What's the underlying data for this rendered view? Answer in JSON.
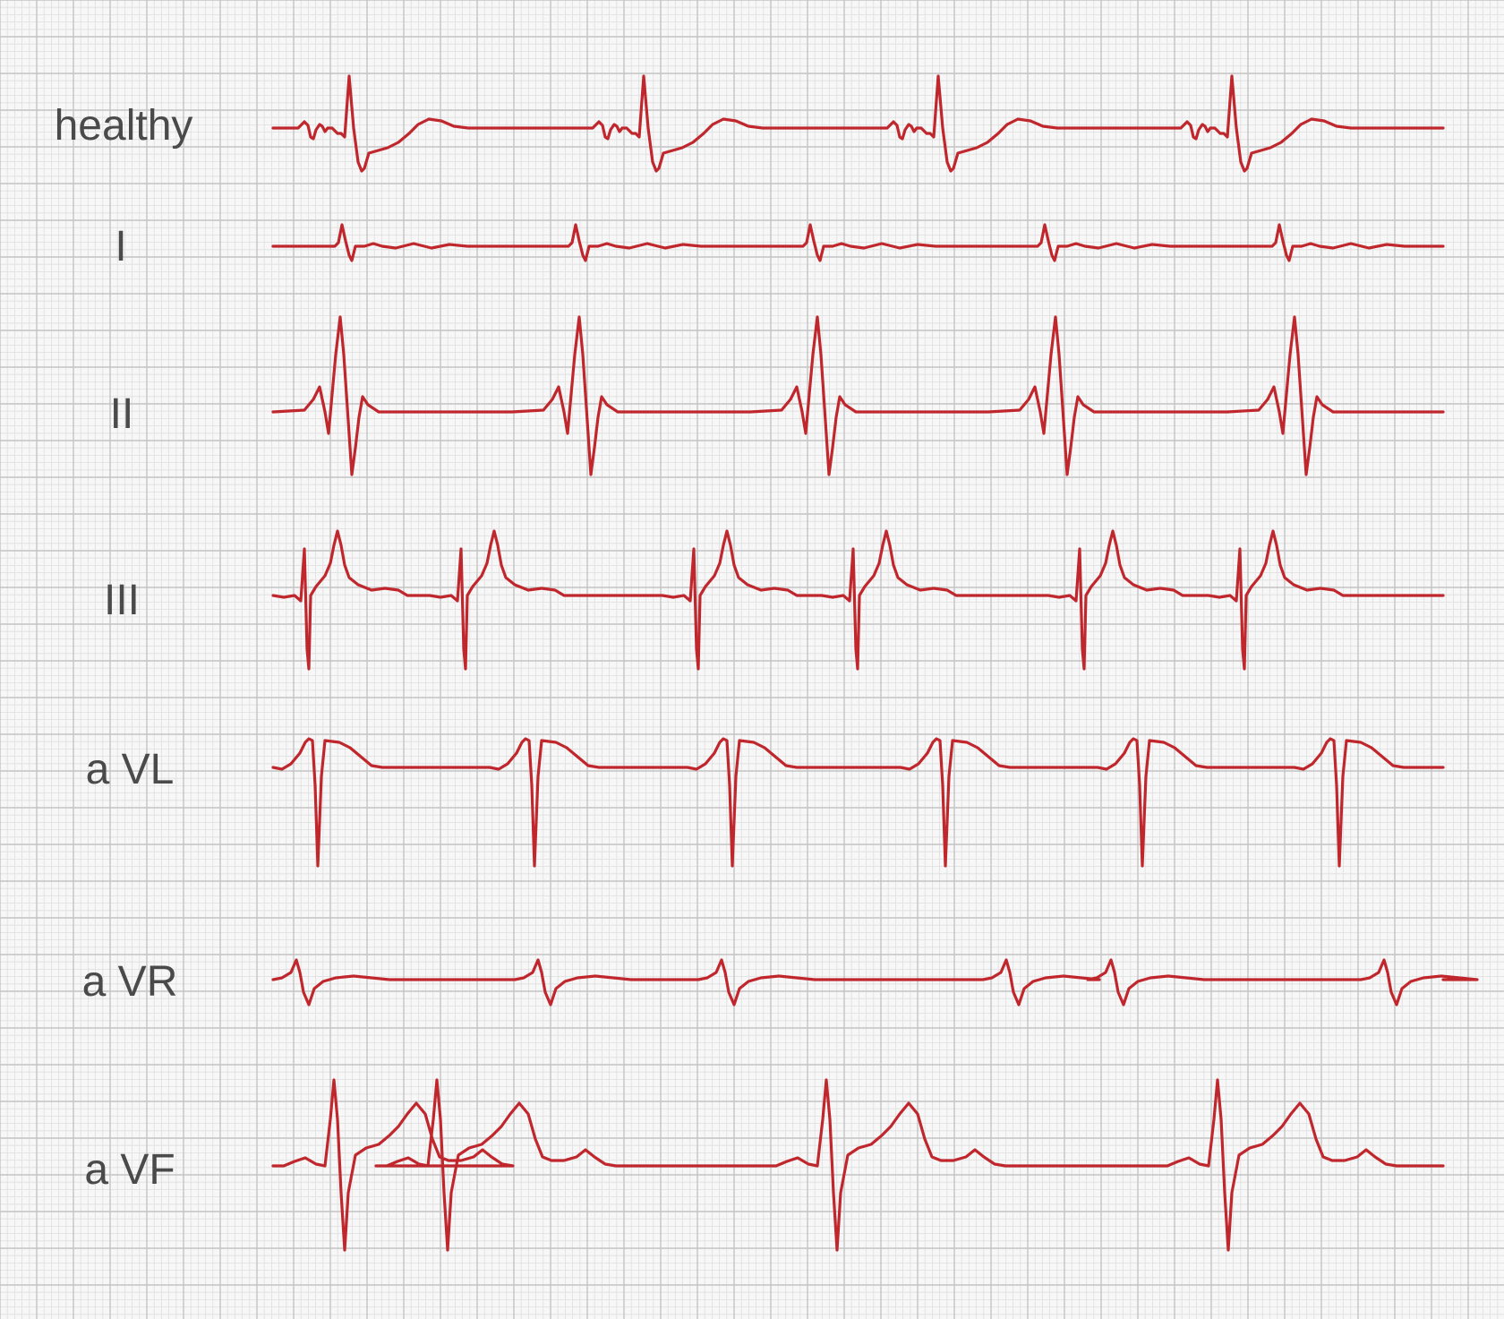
{
  "sheet": {
    "background": "#f7f7f7",
    "grid_minor_color": "#dedede",
    "grid_major_color": "#c4c4c4",
    "trace_color": "#c0272d",
    "label_color": "#4a4a4a"
  },
  "leads": [
    {
      "id": "healthy",
      "label": "healthy"
    },
    {
      "id": "I",
      "label": "I"
    },
    {
      "id": "II",
      "label": "II"
    },
    {
      "id": "III",
      "label": "III"
    },
    {
      "id": "aVL",
      "label": "a VL"
    },
    {
      "id": "aVR",
      "label": "a VR"
    },
    {
      "id": "aVF",
      "label": "a VF"
    }
  ]
}
